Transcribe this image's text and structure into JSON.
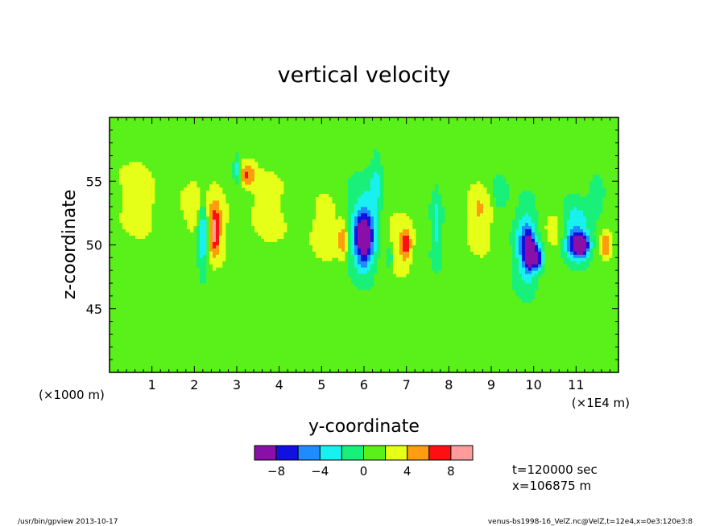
{
  "chart_data": {
    "type": "heatmap",
    "title": "vertical velocity",
    "xlabel": "y-coordinate",
    "ylabel": "z-coordinate",
    "x_unit_left": "(×1000 m)",
    "x_unit_right": "(×1E4 m)",
    "xlim": [
      0,
      12
    ],
    "ylim": [
      40,
      60
    ],
    "x_ticks": [
      1,
      2,
      3,
      4,
      5,
      6,
      7,
      8,
      9,
      10,
      11
    ],
    "x_tick_labels": [
      "1",
      "2",
      "3",
      "4",
      "5",
      "6",
      "7",
      "8",
      "9",
      "10",
      "11"
    ],
    "y_ticks": [
      45,
      50,
      55
    ],
    "y_tick_labels": [
      "45",
      "50",
      "55"
    ],
    "colorbar": {
      "levels": [
        -10,
        -8,
        -6,
        -4,
        -2,
        0,
        2,
        4,
        6,
        8,
        10
      ],
      "tick_values": [
        -8,
        -4,
        0,
        4,
        8
      ],
      "tick_labels": [
        "−8",
        "−4",
        "0",
        "4",
        "8"
      ],
      "colors": [
        "#8a0fa8",
        "#1010e0",
        "#1e8cff",
        "#19f0f0",
        "#19f07a",
        "#5af019",
        "#e6ff19",
        "#ff9c0f",
        "#ff1010",
        "#ff9b9b"
      ]
    },
    "background_value": 1,
    "features": [
      {
        "y": 0.7,
        "z": 53.5,
        "ry": 0.4,
        "rz": 3.0,
        "value": 3
      },
      {
        "y": 2.0,
        "z": 53.0,
        "ry": 0.3,
        "rz": 2.0,
        "value": 2.5
      },
      {
        "y": 2.2,
        "z": 51.0,
        "ry": 0.12,
        "rz": 3.0,
        "value": -6.5
      },
      {
        "y": 2.5,
        "z": 51.5,
        "ry": 0.25,
        "rz": 3.0,
        "value": 3.5
      },
      {
        "y": 2.48,
        "z": 51.0,
        "ry": 0.1,
        "rz": 1.5,
        "value": 5.5
      },
      {
        "y": 3.25,
        "z": 55.5,
        "ry": 0.18,
        "rz": 1.0,
        "value": 5
      },
      {
        "y": 3.0,
        "z": 56.0,
        "ry": 0.08,
        "rz": 1.0,
        "value": -5
      },
      {
        "y": 3.7,
        "z": 53.0,
        "ry": 0.4,
        "rz": 3.0,
        "value": 2.5
      },
      {
        "y": 5.1,
        "z": 51.0,
        "ry": 0.3,
        "rz": 2.5,
        "value": 3
      },
      {
        "y": 5.5,
        "z": 50.5,
        "ry": 0.12,
        "rz": 1.5,
        "value": 5
      },
      {
        "y": 6.0,
        "z": 51.0,
        "ry": 0.35,
        "rz": 3.5,
        "value": -5
      },
      {
        "y": 6.0,
        "z": 50.5,
        "ry": 0.2,
        "rz": 2.0,
        "value": -8.5
      },
      {
        "y": 6.3,
        "z": 55.0,
        "ry": 0.15,
        "rz": 2.0,
        "value": -3
      },
      {
        "y": 6.85,
        "z": 50.0,
        "ry": 0.3,
        "rz": 2.0,
        "value": 3
      },
      {
        "y": 7.0,
        "z": 50.0,
        "ry": 0.1,
        "rz": 1.0,
        "value": 5
      },
      {
        "y": 6.6,
        "z": 49.0,
        "ry": 0.08,
        "rz": 1.0,
        "value": -4
      },
      {
        "y": 7.7,
        "z": 51.5,
        "ry": 0.12,
        "rz": 3.0,
        "value": -3.5
      },
      {
        "y": 8.7,
        "z": 52.5,
        "ry": 0.3,
        "rz": 2.5,
        "value": 3
      },
      {
        "y": 9.2,
        "z": 54.0,
        "ry": 0.2,
        "rz": 1.5,
        "value": -3
      },
      {
        "y": 9.8,
        "z": 50.0,
        "ry": 0.25,
        "rz": 3.0,
        "value": -6
      },
      {
        "y": 9.9,
        "z": 49.5,
        "ry": 0.12,
        "rz": 1.5,
        "value": -9
      },
      {
        "y": 10.1,
        "z": 49.0,
        "ry": 0.12,
        "rz": 1.0,
        "value": -8
      },
      {
        "y": 10.5,
        "z": 51.0,
        "ry": 0.25,
        "rz": 2.0,
        "value": 2.5
      },
      {
        "y": 11.0,
        "z": 51.0,
        "ry": 0.35,
        "rz": 2.5,
        "value": -5
      },
      {
        "y": 11.05,
        "z": 50.0,
        "ry": 0.25,
        "rz": 1.0,
        "value": -7
      },
      {
        "y": 11.15,
        "z": 50.0,
        "ry": 0.12,
        "rz": 0.6,
        "value": -9.5
      },
      {
        "y": 11.7,
        "z": 50.0,
        "ry": 0.12,
        "rz": 1.0,
        "value": 5
      },
      {
        "y": 11.5,
        "z": 54.0,
        "ry": 0.2,
        "rz": 1.5,
        "value": -3
      },
      {
        "y": 5.0,
        "z": 47.0,
        "ry": 0.7,
        "rz": 1.0,
        "value": 0.5
      },
      {
        "y": 8.0,
        "z": 46.0,
        "ry": 0.7,
        "rz": 1.0,
        "value": 0.5
      },
      {
        "y": 3.0,
        "z": 44.0,
        "ry": 0.5,
        "rz": 1.0,
        "value": 0.3
      },
      {
        "y": 9.5,
        "z": 42.0,
        "ry": 0.5,
        "rz": 1.0,
        "value": 0.3
      },
      {
        "y": 10.5,
        "z": 56.5,
        "ry": 0.6,
        "rz": 1.0,
        "value": 0.4
      },
      {
        "y": 4.5,
        "z": 57.5,
        "ry": 0.8,
        "rz": 1.0,
        "value": 0.4
      }
    ]
  },
  "annotations": {
    "time": "t=120000 sec",
    "position": "x=106875 m",
    "footer_left": "/usr/bin/gpview   2013-10-17",
    "footer_right": "venus-bs1998-16_VelZ.nc@VelZ,t=12e4,x=0e3:120e3:8"
  }
}
